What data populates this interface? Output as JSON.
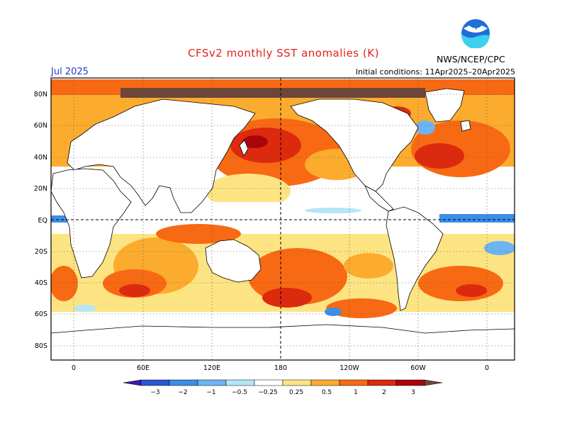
{
  "header": {
    "title": "CFSv2 monthly SST anomalies (K)",
    "period": "Jul 2025",
    "initial_conditions": "Initial conditions: 11Apr2025–20Apr2025",
    "agency": "NWS/NCEP/CPC",
    "logo_text": "NOAA"
  },
  "map": {
    "projection": "equirectangular",
    "lon_labels": [
      "0",
      "60E",
      "120E",
      "180",
      "120W",
      "60W",
      "0"
    ],
    "lat_labels": [
      "80N",
      "60N",
      "40N",
      "20N",
      "EQ",
      "20S",
      "40S",
      "60S",
      "80S"
    ],
    "reference_lines": [
      "180",
      "EQ"
    ]
  },
  "colorbar": {
    "labels": [
      "−3",
      "−2",
      "−1",
      "−0.5",
      "−0.25",
      "0.25",
      "0.5",
      "1",
      "2",
      "3"
    ],
    "colors": [
      "#3a1ab0",
      "#2a57d6",
      "#3c8ee8",
      "#6cb4f2",
      "#b3e6f7",
      "#ffffff",
      "#fde482",
      "#fbac2e",
      "#f86914",
      "#dc2a0e",
      "#a8060c",
      "#6e4638"
    ]
  },
  "colors": {
    "title": "#e0241c",
    "period": "#1f3fbf",
    "logo_blue": "#1d6fd8"
  }
}
